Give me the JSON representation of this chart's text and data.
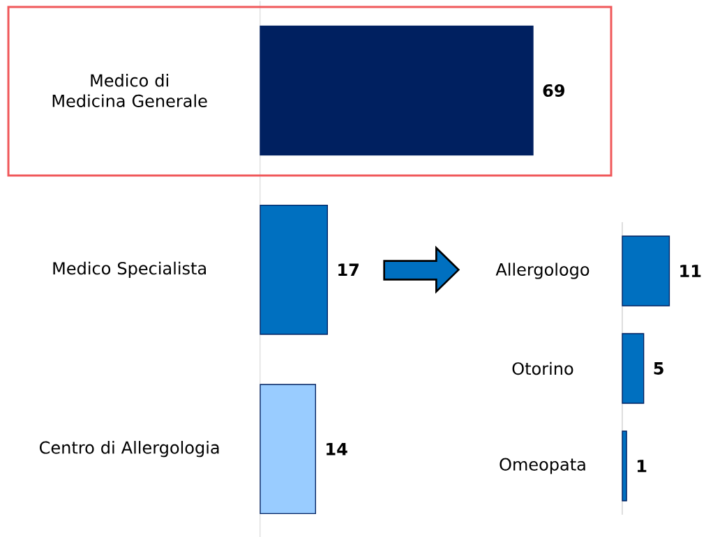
{
  "chart_data": [
    {
      "type": "bar",
      "orientation": "horizontal",
      "categories": [
        "Medico di Medicina Generale",
        "Medico Specialista",
        "Centro di Allergologia"
      ],
      "values": [
        69,
        17,
        14
      ],
      "colors": [
        "#002060",
        "#0070c0",
        "#99ccff"
      ],
      "data_labels": true,
      "tick_labels": "y"
    },
    {
      "type": "bar",
      "orientation": "horizontal",
      "categories": [
        "Allergologo",
        "Otorino",
        "Omeopata"
      ],
      "values": [
        11,
        5,
        1
      ],
      "color": "#0070c0",
      "data_labels": true,
      "tick_labels": "y"
    }
  ]
}
